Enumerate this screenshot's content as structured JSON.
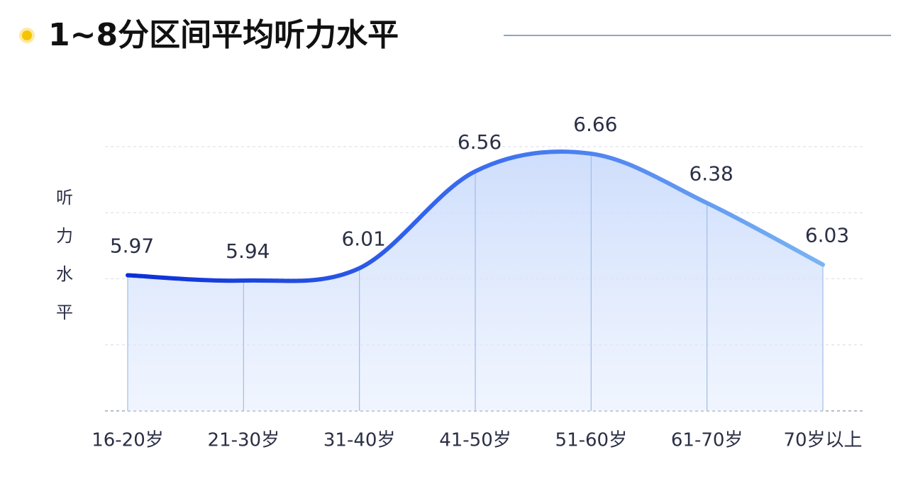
{
  "chart_data": {
    "type": "area",
    "title": "1~8分区间平均听力水平",
    "y_label": "听力水平",
    "categories": [
      "16-20岁",
      "21-30岁",
      "31-40岁",
      "41-50岁",
      "51-60岁",
      "61-70岁",
      "70岁以上"
    ],
    "values": [
      5.97,
      5.94,
      6.01,
      6.56,
      6.66,
      6.38,
      6.03
    ],
    "color": "#2f5fe8",
    "ylim": [
      5.2,
      6.7
    ],
    "grid": true
  }
}
